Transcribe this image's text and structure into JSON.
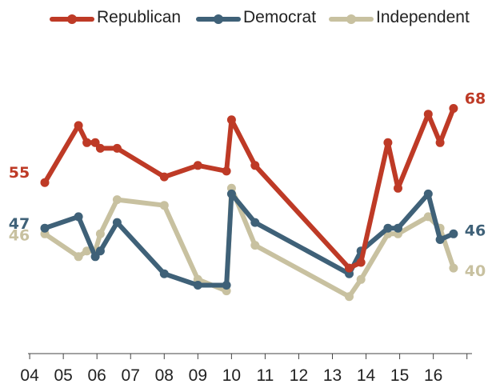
{
  "chart_data": {
    "type": "line",
    "title": "",
    "xlabel": "",
    "ylabel": "",
    "x_tick_labels": [
      "04",
      "05",
      "06",
      "07",
      "08",
      "09",
      "10",
      "11",
      "12",
      "13",
      "14",
      "15",
      "16"
    ],
    "xlim": [
      2003.95,
      2017.15
    ],
    "ylim": [
      25,
      80
    ],
    "grid": false,
    "legend_position": "top",
    "series": [
      {
        "name": "Republican",
        "color": "#be3a26",
        "start_label": "55",
        "end_label": "68",
        "points": [
          [
            2004.45,
            55
          ],
          [
            2005.45,
            65
          ],
          [
            2005.7,
            62
          ],
          [
            2005.95,
            62
          ],
          [
            2006.1,
            61
          ],
          [
            2006.6,
            61
          ],
          [
            2008.0,
            56
          ],
          [
            2009.0,
            58
          ],
          [
            2009.85,
            57
          ],
          [
            2010.0,
            66
          ],
          [
            2010.7,
            58
          ],
          [
            2013.5,
            40
          ],
          [
            2013.85,
            41
          ],
          [
            2014.65,
            62
          ],
          [
            2014.95,
            54
          ],
          [
            2015.85,
            67
          ],
          [
            2016.2,
            62
          ],
          [
            2016.6,
            68
          ]
        ]
      },
      {
        "name": "Democrat",
        "color": "#3f6178",
        "start_label": "47",
        "end_label": "46",
        "points": [
          [
            2004.45,
            47
          ],
          [
            2005.45,
            49
          ],
          [
            2005.95,
            42
          ],
          [
            2006.1,
            43
          ],
          [
            2006.6,
            48
          ],
          [
            2008.0,
            39
          ],
          [
            2009.0,
            37
          ],
          [
            2009.85,
            37
          ],
          [
            2010.0,
            53
          ],
          [
            2010.7,
            48
          ],
          [
            2013.5,
            39
          ],
          [
            2013.85,
            43
          ],
          [
            2014.65,
            47
          ],
          [
            2014.95,
            47
          ],
          [
            2015.85,
            53
          ],
          [
            2016.2,
            45
          ],
          [
            2016.6,
            46
          ]
        ]
      },
      {
        "name": "Independent",
        "color": "#c8c1a0",
        "start_label": "46",
        "end_label": "40",
        "points": [
          [
            2004.45,
            46
          ],
          [
            2005.45,
            42
          ],
          [
            2005.7,
            43
          ],
          [
            2005.95,
            43
          ],
          [
            2006.1,
            46
          ],
          [
            2006.6,
            52
          ],
          [
            2008.0,
            51
          ],
          [
            2009.0,
            38
          ],
          [
            2009.85,
            36
          ],
          [
            2010.0,
            54
          ],
          [
            2010.7,
            44
          ],
          [
            2013.5,
            35
          ],
          [
            2013.85,
            38
          ],
          [
            2014.65,
            46
          ],
          [
            2014.95,
            46
          ],
          [
            2015.85,
            49
          ],
          [
            2016.2,
            47
          ],
          [
            2016.6,
            40
          ]
        ]
      }
    ]
  }
}
